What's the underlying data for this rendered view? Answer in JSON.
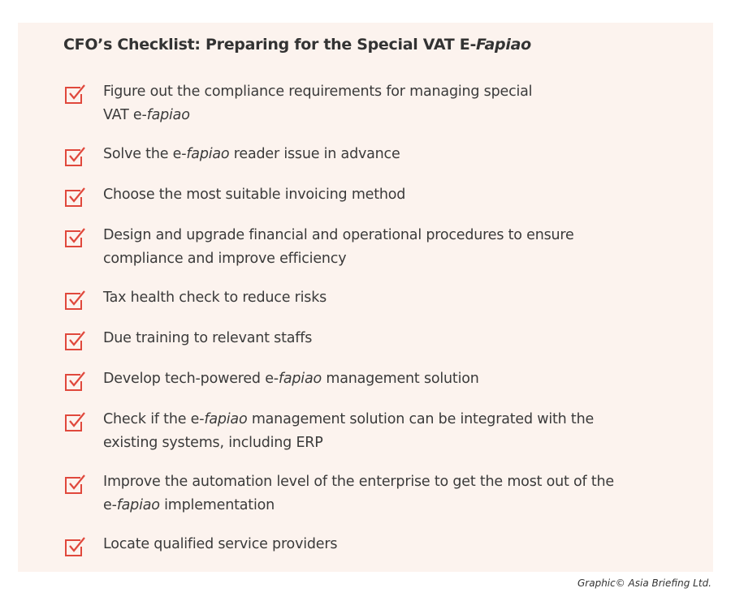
{
  "title": [
    "CFO’s Checklist: Preparing for the Special VAT E-",
    {
      "text": "Fapiao",
      "italic": true
    }
  ],
  "items": [
    {
      "lines": [
        [
          "Figure out the compliance requirements for managing special"
        ],
        [
          "VAT e-",
          {
            "text": "fapiao",
            "italic": true
          }
        ]
      ]
    },
    {
      "lines": [
        [
          "Solve the e-",
          {
            "text": "fapiao",
            "italic": true
          },
          " reader issue in advance"
        ]
      ]
    },
    {
      "lines": [
        [
          "Choose the most suitable invoicing method"
        ]
      ]
    },
    {
      "lines": [
        [
          "Design and upgrade financial and operational procedures to ensure"
        ],
        [
          "compliance and improve efficiency"
        ]
      ]
    },
    {
      "lines": [
        [
          "Tax health check to reduce risks"
        ]
      ]
    },
    {
      "lines": [
        [
          "Due training to relevant staffs"
        ]
      ]
    },
    {
      "lines": [
        [
          "Develop tech-powered e-",
          {
            "text": "fapiao",
            "italic": true
          },
          " management solution"
        ]
      ]
    },
    {
      "lines": [
        [
          "Check if the e-",
          {
            "text": "fapiao",
            "italic": true
          },
          " management solution can be integrated with the"
        ],
        [
          "existing systems, including ERP"
        ]
      ]
    },
    {
      "lines": [
        [
          "Improve the automation level of the enterprise to get the most out of the"
        ],
        [
          "e-",
          {
            "text": "fapiao",
            "italic": true
          },
          " implementation"
        ]
      ]
    },
    {
      "lines": [
        [
          "Locate qualified service providers"
        ]
      ]
    }
  ],
  "credit": "Graphic© Asia Briefing Ltd."
}
